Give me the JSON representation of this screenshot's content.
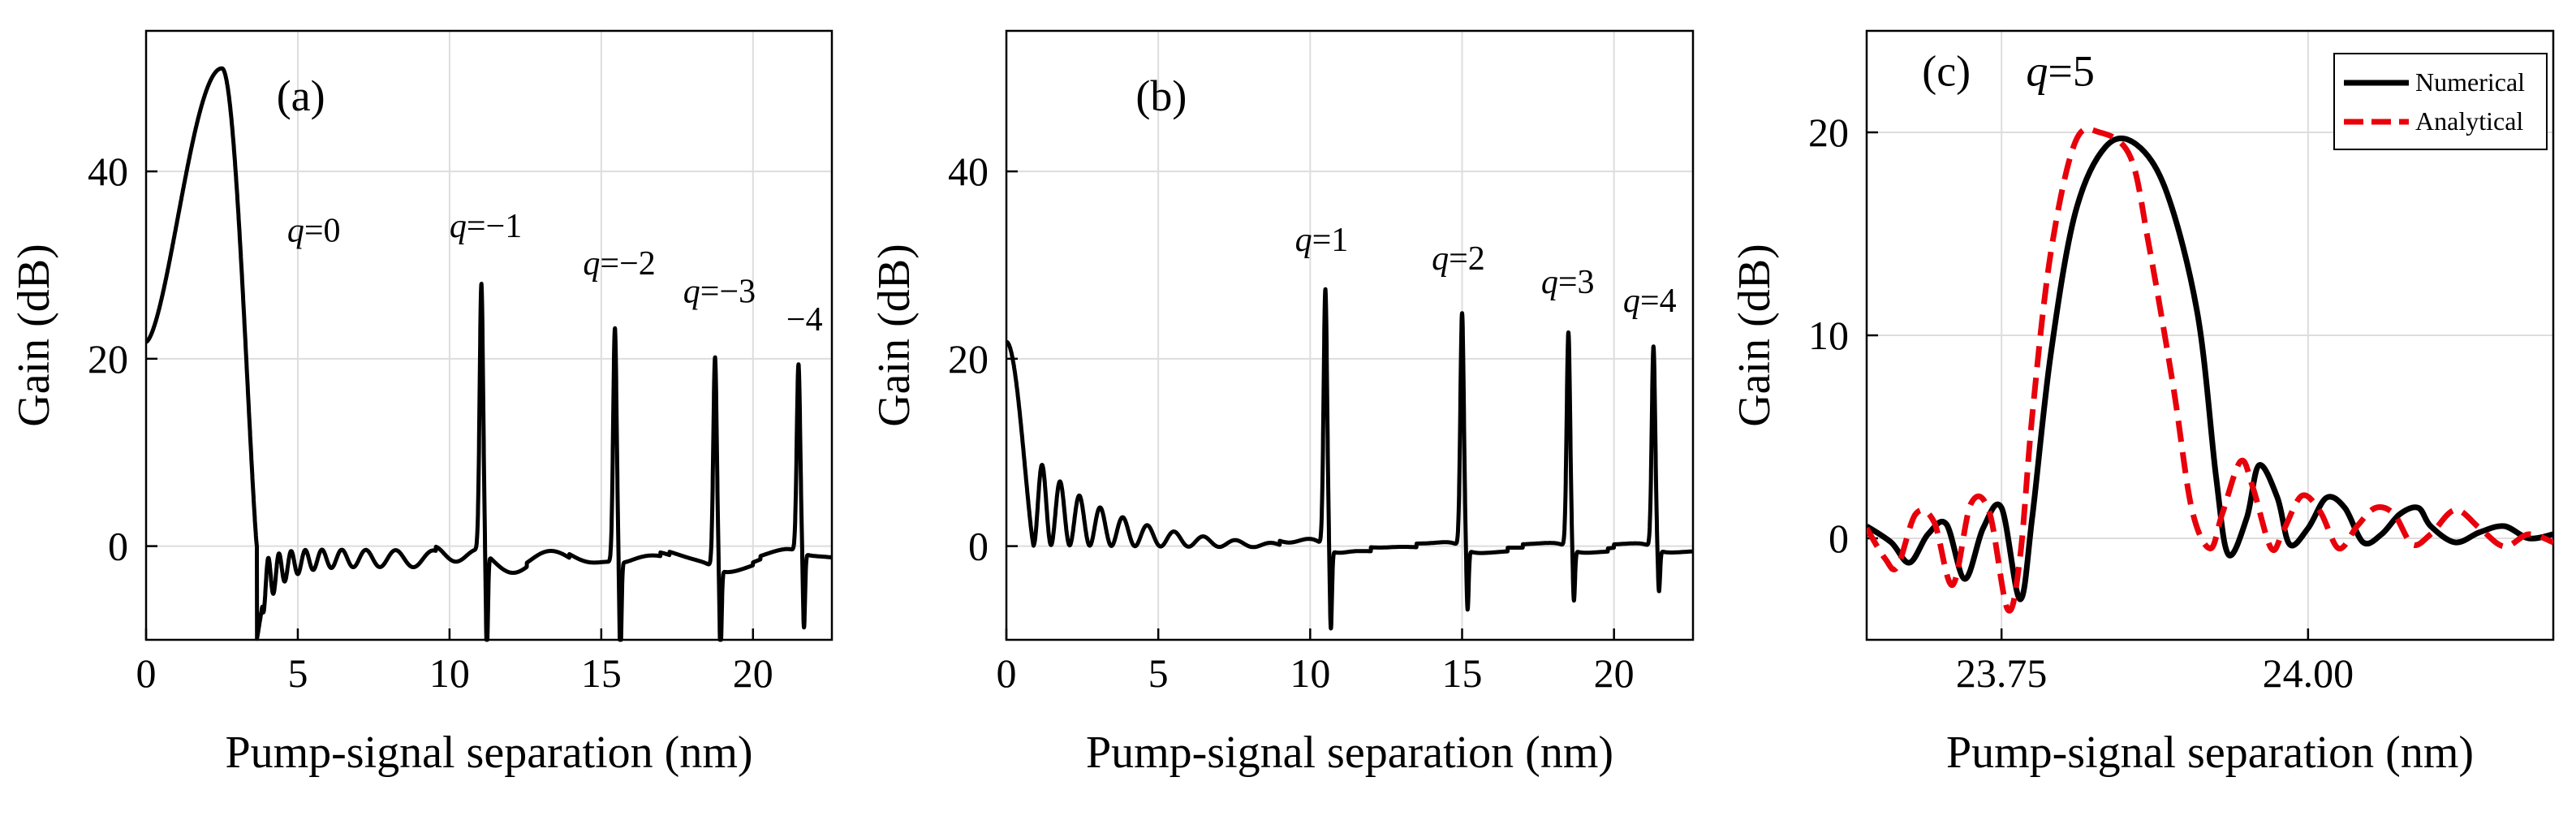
{
  "figure_description": "Three-panel gain vs. pump-signal separation figure",
  "colors": {
    "numerical": "#000000",
    "analytical": "#e8000b",
    "grid": "#dddddd"
  },
  "chart_data": [
    {
      "type": "line",
      "panel_label": "(a)",
      "xlabel": "Pump-signal separation (nm)",
      "ylabel": "Gain (dB)",
      "xlim": [
        0,
        22.6
      ],
      "ylim": [
        -10,
        55
      ],
      "xticks": [
        0,
        5,
        10,
        15,
        20
      ],
      "xtick_labels": [
        "0",
        "5",
        "10",
        "15",
        "20"
      ],
      "yticks": [
        0,
        20,
        40
      ],
      "ytick_labels": [
        "0",
        "20",
        "40"
      ],
      "main_lobe": {
        "x0": 0,
        "y0": 21.8,
        "peak_x": 2.5,
        "peak_y": 51,
        "zero_x": 3.65,
        "min_x": 3.85,
        "min_y": -10
      },
      "peaks": [
        {
          "x": 11.05,
          "y": 28.5,
          "dip": -10,
          "q": "−1",
          "label": "q=−1",
          "label_x": 10.0,
          "label_y": 33
        },
        {
          "x": 15.45,
          "y": 25.0,
          "dip": -10,
          "q": "−2",
          "label": "q=−2",
          "label_x": 14.4,
          "label_y": 29
        },
        {
          "x": 18.75,
          "y": 22.5,
          "dip": -8.5,
          "q": "−3",
          "label": "q=−3",
          "label_x": 17.7,
          "label_y": 26
        },
        {
          "x": 21.5,
          "y": 20.0,
          "dip": -7.5,
          "q": "−4",
          "label": "−4",
          "label_x": 21.1,
          "label_y": 23
        }
      ],
      "q0_label": {
        "text": "q=0",
        "x": 4.65,
        "y": 32.5,
        "q": "0"
      }
    },
    {
      "type": "line",
      "panel_label": "(b)",
      "xlabel": "Pump-signal separation (nm)",
      "ylabel": "Gain (dB)",
      "xlim": [
        0,
        22.6
      ],
      "ylim": [
        -10,
        55
      ],
      "xticks": [
        0,
        5,
        10,
        15,
        20
      ],
      "xtick_labels": [
        "0",
        "5",
        "10",
        "15",
        "20"
      ],
      "yticks": [
        0,
        20,
        40
      ],
      "ytick_labels": [
        "0",
        "20",
        "40"
      ],
      "start": {
        "x": 0,
        "y": 21.8
      },
      "peaks": [
        {
          "x": 10.5,
          "y": 27.5,
          "dip": -8,
          "q": "1",
          "label": "q=1",
          "label_x": 9.5,
          "label_y": 31.5
        },
        {
          "x": 15.0,
          "y": 25.0,
          "dip": -6,
          "q": "2",
          "label": "q=2",
          "label_x": 14.0,
          "label_y": 29.5
        },
        {
          "x": 18.5,
          "y": 23.0,
          "dip": -5,
          "q": "3",
          "label": "q=3",
          "label_x": 17.6,
          "label_y": 27
        },
        {
          "x": 21.3,
          "y": 21.5,
          "dip": -4,
          "q": "4",
          "label": "q=4",
          "label_x": 20.3,
          "label_y": 25
        }
      ]
    },
    {
      "type": "line",
      "panel_label": "(c)",
      "title_label": "q=5",
      "title_q": "5",
      "xlabel": "Pump-signal separation (nm)",
      "ylabel": "Gain (dB)",
      "xlim": [
        23.64,
        24.2
      ],
      "ylim": [
        -5,
        25
      ],
      "xticks": [
        23.75,
        24.0
      ],
      "xtick_labels": [
        "23.75",
        "24.00"
      ],
      "yticks": [
        0,
        10,
        20
      ],
      "ytick_labels": [
        "0",
        "10",
        "20"
      ],
      "legend": {
        "position": "top-right",
        "entries": [
          "Numerical",
          "Analytical"
        ]
      },
      "series": [
        {
          "name": "Numerical",
          "x": [
            23.64,
            23.66,
            23.675,
            23.69,
            23.705,
            23.72,
            23.735,
            23.75,
            23.765,
            23.775,
            23.79,
            23.81,
            23.835,
            23.86,
            23.885,
            23.91,
            23.925,
            23.935,
            23.95,
            23.96,
            23.975,
            23.985,
            24.0,
            24.015,
            24.03,
            24.045,
            24.06,
            24.075,
            24.09,
            24.1,
            24.12,
            24.14,
            24.16,
            24.18,
            24.2
          ],
          "y": [
            0.6,
            -0.2,
            -1.2,
            0.2,
            0.7,
            -2.0,
            0.5,
            1.5,
            -3.0,
            1.0,
            9.0,
            16.0,
            19.3,
            19.4,
            17.0,
            11.0,
            3.0,
            -0.8,
            1.0,
            3.6,
            2.0,
            -0.3,
            0.5,
            2.0,
            1.5,
            -0.2,
            0.2,
            1.2,
            1.5,
            0.6,
            -0.2,
            0.3,
            0.6,
            0.0,
            0.2
          ]
        },
        {
          "name": "Analytical",
          "x": [
            23.64,
            23.655,
            23.665,
            23.68,
            23.695,
            23.71,
            23.725,
            23.74,
            23.755,
            23.765,
            23.775,
            23.79,
            23.81,
            23.83,
            23.855,
            23.87,
            23.89,
            23.905,
            23.92,
            23.93,
            23.945,
            23.955,
            23.97,
            23.98,
            23.995,
            24.01,
            24.025,
            24.04,
            24.055,
            24.07,
            24.085,
            24.1,
            24.12,
            24.14,
            24.16,
            24.18,
            24.2
          ],
          "y": [
            0.5,
            -1.0,
            -1.4,
            1.2,
            0.8,
            -2.3,
            1.7,
            1.3,
            -3.5,
            -1.0,
            6.0,
            14.0,
            19.5,
            20.0,
            18.8,
            14.5,
            7.5,
            1.5,
            -0.5,
            1.2,
            3.8,
            2.5,
            -0.5,
            0.4,
            2.1,
            1.3,
            -0.5,
            0.6,
            1.5,
            1.2,
            -0.3,
            0.2,
            1.4,
            0.5,
            -0.4,
            0.2,
            -0.2
          ]
        }
      ]
    }
  ]
}
